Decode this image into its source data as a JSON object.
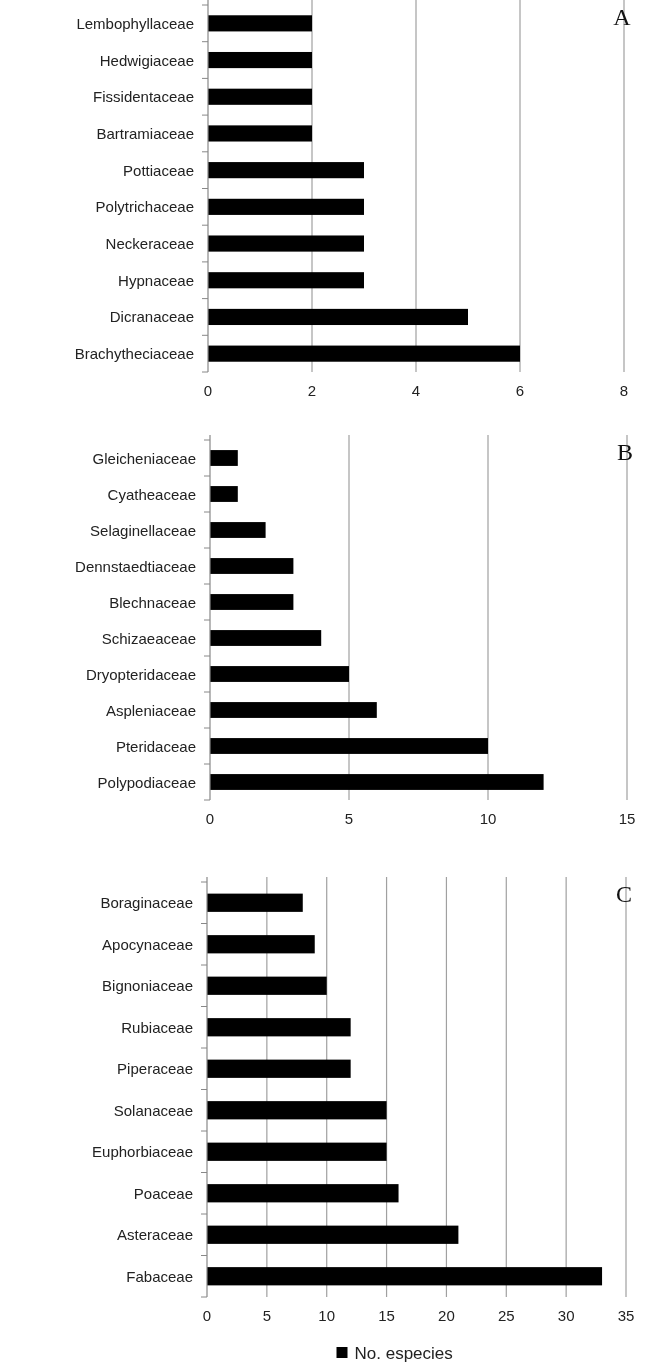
{
  "chart_data": [
    {
      "type": "bar",
      "orientation": "horizontal",
      "categories": [
        "Lembophyllaceae",
        "Hedwigiaceae",
        "Fissidentaceae",
        "Bartramiaceae",
        "Pottiaceae",
        "Polytrichaceae",
        "Neckeraceae",
        "Hypnaceae",
        "Dicranaceae",
        "Brachytheciaceae"
      ],
      "series": [
        {
          "color": "#000000",
          "values": [
            2,
            2,
            2,
            2,
            3,
            3,
            3,
            3,
            5,
            6
          ]
        }
      ],
      "xlim": [
        0,
        8
      ],
      "xticks": [
        0,
        2,
        4,
        6,
        8
      ],
      "grid": "x",
      "annotations": [
        "A"
      ]
    },
    {
      "type": "bar",
      "orientation": "horizontal",
      "categories": [
        "Gleicheniaceae",
        "Cyatheaceae",
        "Selaginellaceae",
        "Dennstaedtiaceae",
        "Blechnaceae",
        "Schizaeaceae",
        "Dryopteridaceae",
        "Aspleniaceae",
        "Pteridaceae",
        "Polypodiaceae"
      ],
      "series": [
        {
          "color": "#000000",
          "values": [
            1,
            1,
            2,
            3,
            3,
            4,
            5,
            6,
            10,
            12
          ]
        }
      ],
      "xlim": [
        0,
        15
      ],
      "xticks": [
        0,
        5,
        10,
        15
      ],
      "grid": "x",
      "annotations": [
        "B"
      ]
    },
    {
      "type": "bar",
      "orientation": "horizontal",
      "categories": [
        "Boraginaceae",
        "Apocynaceae",
        "Bignoniaceae",
        "Rubiaceae",
        "Piperaceae",
        "Solanaceae",
        "Euphorbiaceae",
        "Poaceae",
        "Asteraceae",
        "Fabaceae"
      ],
      "series": [
        {
          "name": "No. especies",
          "color": "#000000",
          "values": [
            8,
            9,
            10,
            12,
            12,
            15,
            15,
            16,
            21,
            33
          ]
        }
      ],
      "xlim": [
        0,
        35
      ],
      "xticks": [
        0,
        5,
        10,
        15,
        20,
        25,
        30,
        35
      ],
      "grid": "x",
      "legend": "bottom",
      "annotations": [
        "C"
      ]
    }
  ]
}
